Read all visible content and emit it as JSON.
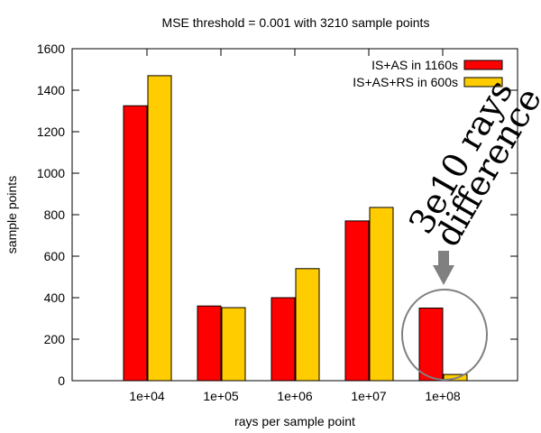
{
  "chart_data": {
    "type": "bar",
    "title": "MSE threshold = 0.001 with 3210 sample points",
    "xlabel": "rays per sample point",
    "ylabel": "sample points",
    "categories": [
      "1e+04",
      "1e+05",
      "1e+06",
      "1e+07",
      "1e+08"
    ],
    "ylim": [
      0,
      1600
    ],
    "yticks": [
      0,
      200,
      400,
      600,
      800,
      1000,
      1200,
      1400,
      1600
    ],
    "grid": false,
    "legend_position": "top-right",
    "series": [
      {
        "name": "IS+AS in 1160s",
        "color": "#ff0000",
        "values": [
          1325,
          360,
          400,
          770,
          350
        ]
      },
      {
        "name": "IS+AS+RS in 600s",
        "color": "#ffcc00",
        "values": [
          1470,
          352,
          540,
          835,
          30
        ]
      }
    ],
    "annotation": {
      "line1": "3e10 rays",
      "line2": "difference",
      "arrow_color": "#808080",
      "ellipse_color": "#808080",
      "highlighted_category": "1e+08"
    }
  }
}
